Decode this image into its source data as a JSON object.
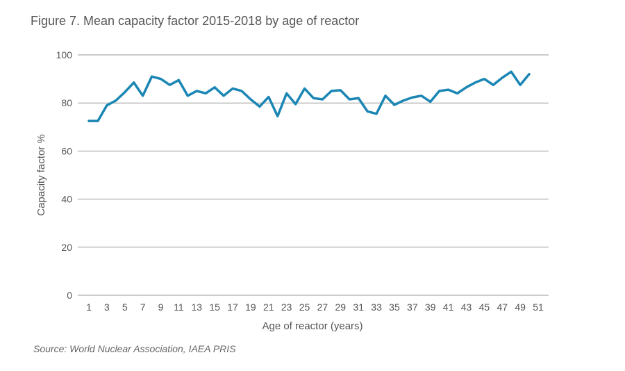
{
  "figure": {
    "title": "Figure 7. Mean capacity factor 2015-2018 by age of reactor",
    "source": "Source: World Nuclear Association, IAEA PRIS"
  },
  "colors": {
    "line": "#1b86b4",
    "grid": "#9a9a9a",
    "text": "#555555"
  },
  "chart_data": {
    "type": "line",
    "title": "Figure 7. Mean capacity factor 2015-2018 by age of reactor",
    "xlabel": "Age of reactor (years)",
    "ylabel": "Capacity factor %",
    "ylim": [
      0,
      100
    ],
    "xlim": [
      1,
      51
    ],
    "yticks": [
      "0",
      "20",
      "40",
      "60",
      "80",
      "100"
    ],
    "xticks": [
      "1",
      "3",
      "5",
      "7",
      "9",
      "11",
      "13",
      "15",
      "17",
      "19",
      "21",
      "23",
      "25",
      "27",
      "29",
      "31",
      "33",
      "35",
      "37",
      "39",
      "41",
      "43",
      "45",
      "47",
      "49",
      "51"
    ],
    "grid": "horizontal",
    "legend": "none",
    "x": [
      1,
      2,
      3,
      4,
      5,
      6,
      7,
      8,
      9,
      10,
      11,
      12,
      13,
      14,
      15,
      16,
      17,
      18,
      19,
      20,
      21,
      22,
      23,
      24,
      25,
      26,
      27,
      28,
      29,
      30,
      31,
      32,
      33,
      34,
      35,
      36,
      37,
      38,
      39,
      40,
      41,
      42,
      43,
      44,
      45,
      46,
      47,
      48,
      49,
      50
    ],
    "series": [
      {
        "values": [
          72.5,
          72.5,
          79,
          81,
          84.5,
          88.5,
          83,
          91,
          90,
          87.5,
          89.5,
          83,
          85,
          84,
          86.5,
          83,
          86,
          85,
          81.5,
          78.5,
          82.5,
          74.5,
          84,
          79.5,
          86,
          82,
          81.5,
          85,
          85.3,
          81.5,
          82,
          76.5,
          75.5,
          83,
          79.2,
          81,
          82.3,
          83,
          80.5,
          85,
          85.5,
          84,
          86.5,
          88.5,
          90,
          87.5,
          90.5,
          93,
          87.5,
          92
        ]
      }
    ]
  }
}
